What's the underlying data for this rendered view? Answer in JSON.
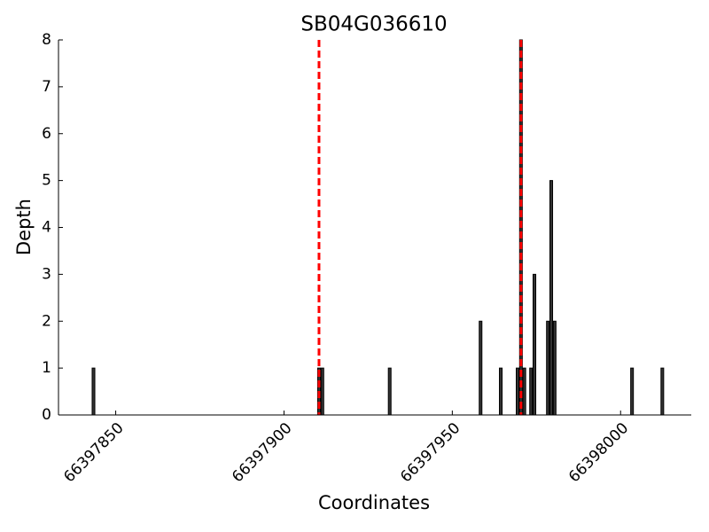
{
  "chart_data": {
    "type": "bar",
    "title": "SB04G036610",
    "x_label": "Coordinates",
    "y_label": "Depth",
    "x": [
      66397843,
      66397910,
      66397911,
      66397931,
      66397958,
      66397964,
      66397969,
      66397970,
      66397971,
      66397973,
      66397974,
      66397978,
      66397979,
      66397980,
      66398003,
      66398012
    ],
    "values": [
      1,
      1,
      1,
      1,
      2,
      1,
      1,
      8,
      1,
      1,
      3,
      2,
      5,
      2,
      1,
      1
    ],
    "color": "#333333",
    "vlines": [
      66397910,
      66397970
    ],
    "vline_color": "#ff0000",
    "xlim": [
      66397833,
      66398021
    ],
    "xticks": [
      66397850,
      66397900,
      66397950,
      66398000
    ],
    "ylim": [
      0,
      8
    ],
    "yticks": [
      0,
      1,
      2,
      3,
      4,
      5,
      6,
      7,
      8
    ],
    "grid": false
  }
}
